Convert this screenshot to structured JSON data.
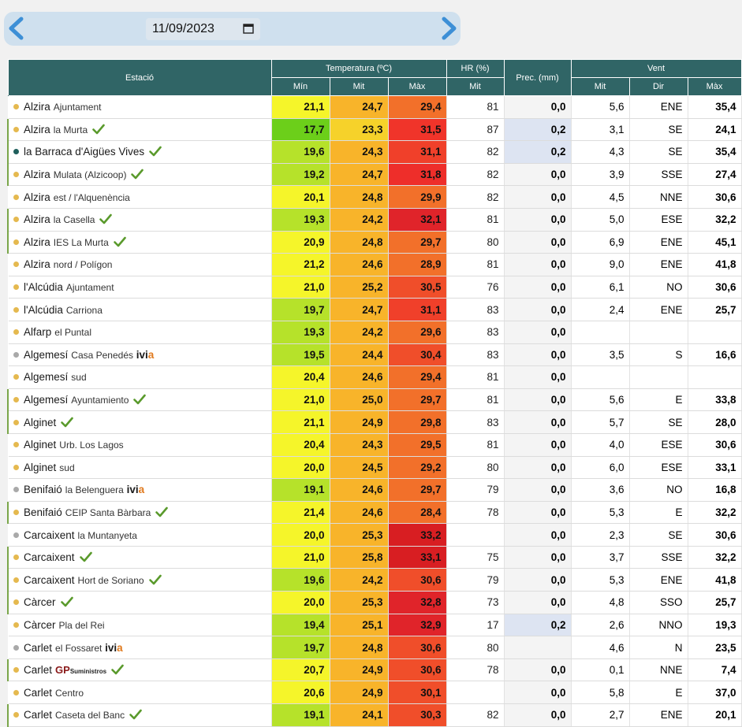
{
  "date": "11/09/2023",
  "colors": {
    "header": "#306566",
    "wet": "#dde4f2",
    "dot_default": "#e5b94f",
    "dot_gray": "#a9a9a9",
    "dot_teal": "#1f5f5c",
    "check": "#5a9a2c"
  },
  "headers": {
    "station": "Estació",
    "temp": "Temperatura (ºC)",
    "hr": "HR (%)",
    "prec": "Prec. (mm)",
    "wind": "Vent",
    "min": "Mín",
    "mit": "Mit",
    "max": "Màx",
    "hr_mit": "Mit",
    "wind_mit": "Mit",
    "wind_dir": "Dir",
    "wind_max": "Màx"
  },
  "rows": [
    {
      "name": "Alzira",
      "sub": "Ajuntament",
      "check": false,
      "dot": "y",
      "min": "21,1",
      "mit": "24,7",
      "max": "29,4",
      "hr": "81",
      "prec": "0,0",
      "wmit": "5,6",
      "wdir": "ENE",
      "wmax": "35,4",
      "cmin": "#f5f52a",
      "cmit": "#f8b42a",
      "cmax": "#f2702a"
    },
    {
      "name": "Alzira",
      "sub": "la Murta",
      "check": true,
      "dot": "y",
      "min": "17,7",
      "mit": "23,3",
      "max": "31,5",
      "hr": "87",
      "prec": "0,2",
      "wet": true,
      "wmit": "3,1",
      "wdir": "SE",
      "wmax": "24,1",
      "cmin": "#6ccf1a",
      "cmit": "#f6d22a",
      "cmax": "#f0342a"
    },
    {
      "name": "la Barraca d'Aigües Vives",
      "sub": "",
      "check": true,
      "dot": "t",
      "min": "19,6",
      "mit": "24,3",
      "max": "31,1",
      "hr": "82",
      "prec": "0,2",
      "wet": true,
      "wmit": "4,3",
      "wdir": "SE",
      "wmax": "35,4",
      "cmin": "#b6e22a",
      "cmit": "#f8b42a",
      "cmax": "#f0402a"
    },
    {
      "name": "Alzira",
      "sub": "Mulata (Alzicoop)",
      "check": true,
      "dot": "y",
      "min": "19,2",
      "mit": "24,7",
      "max": "31,8",
      "hr": "82",
      "prec": "0,0",
      "wmit": "3,9",
      "wdir": "SSE",
      "wmax": "27,4",
      "cmin": "#b6e22a",
      "cmit": "#f8b42a",
      "cmax": "#ee2e2a"
    },
    {
      "name": "Alzira",
      "sub": "est / l'Alquenència",
      "check": false,
      "dot": "y",
      "min": "20,1",
      "mit": "24,8",
      "max": "29,9",
      "hr": "82",
      "prec": "0,0",
      "wmit": "4,5",
      "wdir": "NNE",
      "wmax": "30,6",
      "cmin": "#f5f52a",
      "cmit": "#f8b42a",
      "cmax": "#f2702a"
    },
    {
      "name": "Alzira",
      "sub": "la Casella",
      "check": true,
      "dot": "y",
      "min": "19,3",
      "mit": "24,2",
      "max": "32,1",
      "hr": "81",
      "prec": "0,0",
      "wmit": "5,0",
      "wdir": "ESE",
      "wmax": "32,2",
      "cmin": "#b6e22a",
      "cmit": "#f8b42a",
      "cmax": "#e0242a"
    },
    {
      "name": "Alzira",
      "sub": "IES La Murta",
      "check": true,
      "dot": "y",
      "min": "20,9",
      "mit": "24,8",
      "max": "29,7",
      "hr": "80",
      "prec": "0,0",
      "wmit": "6,9",
      "wdir": "ENE",
      "wmax": "45,1",
      "cmin": "#f5f52a",
      "cmit": "#f8b42a",
      "cmax": "#f2702a"
    },
    {
      "name": "Alzira",
      "sub": "nord / Polígon",
      "check": false,
      "dot": "y",
      "min": "21,2",
      "mit": "24,6",
      "max": "28,9",
      "hr": "81",
      "prec": "0,0",
      "wmit": "9,0",
      "wdir": "ENE",
      "wmax": "41,8",
      "cmin": "#f5f52a",
      "cmit": "#f8b42a",
      "cmax": "#f2702a"
    },
    {
      "name": "l'Alcúdia",
      "sub": "Ajuntament",
      "check": false,
      "dot": "y",
      "min": "21,0",
      "mit": "25,2",
      "max": "30,5",
      "hr": "76",
      "prec": "0,0",
      "wmit": "6,1",
      "wdir": "NO",
      "wmax": "30,6",
      "cmin": "#f5f52a",
      "cmit": "#f8b42a",
      "cmax": "#f04e2a"
    },
    {
      "name": "l'Alcúdia",
      "sub": "Carriona",
      "check": false,
      "dot": "y",
      "min": "19,7",
      "mit": "24,7",
      "max": "31,1",
      "hr": "83",
      "prec": "0,0",
      "wmit": "2,4",
      "wdir": "ENE",
      "wmax": "25,7",
      "cmin": "#b6e22a",
      "cmit": "#f8b42a",
      "cmax": "#f0402a"
    },
    {
      "name": "Alfarp",
      "sub": "el Puntal",
      "check": false,
      "dot": "y",
      "min": "19,3",
      "mit": "24,2",
      "max": "29,6",
      "hr": "83",
      "prec": "0,0",
      "wmit": "",
      "wdir": "",
      "wmax": "",
      "cmin": "#b6e22a",
      "cmit": "#f8b42a",
      "cmax": "#f2702a"
    },
    {
      "name": "Algemesí",
      "sub": "Casa Penedés",
      "ivia": true,
      "check": false,
      "dot": "g",
      "min": "19,5",
      "mit": "24,4",
      "max": "30,4",
      "hr": "83",
      "prec": "0,0",
      "wmit": "3,5",
      "wdir": "S",
      "wmax": "16,6",
      "cmin": "#b6e22a",
      "cmit": "#f8b42a",
      "cmax": "#f04e2a"
    },
    {
      "name": "Algemesí",
      "sub": "sud",
      "check": false,
      "dot": "y",
      "min": "20,4",
      "mit": "24,6",
      "max": "29,4",
      "hr": "81",
      "prec": "0,0",
      "wmit": "",
      "wdir": "",
      "wmax": "",
      "cmin": "#f5f52a",
      "cmit": "#f8b42a",
      "cmax": "#f2702a"
    },
    {
      "name": "Algemesí",
      "sub": "Ayuntamiento",
      "check": true,
      "dot": "y",
      "min": "21,0",
      "mit": "25,0",
      "max": "29,7",
      "hr": "81",
      "prec": "0,0",
      "wmit": "5,6",
      "wdir": "E",
      "wmax": "33,8",
      "cmin": "#f5f52a",
      "cmit": "#f8b42a",
      "cmax": "#f2702a"
    },
    {
      "name": "Alginet",
      "sub": "",
      "check": true,
      "dot": "y",
      "min": "21,1",
      "mit": "24,9",
      "max": "29,8",
      "hr": "83",
      "prec": "0,0",
      "wmit": "5,7",
      "wdir": "SE",
      "wmax": "28,0",
      "cmin": "#f5f52a",
      "cmit": "#f8b42a",
      "cmax": "#f2702a"
    },
    {
      "name": "Alginet",
      "sub": "Urb. Los Lagos",
      "check": false,
      "dot": "y",
      "min": "20,4",
      "mit": "24,3",
      "max": "29,5",
      "hr": "81",
      "prec": "0,0",
      "wmit": "4,0",
      "wdir": "ESE",
      "wmax": "30,6",
      "cmin": "#f5f52a",
      "cmit": "#f8b42a",
      "cmax": "#f2702a"
    },
    {
      "name": "Alginet",
      "sub": "sud",
      "check": false,
      "dot": "y",
      "min": "20,0",
      "mit": "24,5",
      "max": "29,2",
      "hr": "80",
      "prec": "0,0",
      "wmit": "6,0",
      "wdir": "ESE",
      "wmax": "33,1",
      "cmin": "#f5f52a",
      "cmit": "#f8b42a",
      "cmax": "#f2702a"
    },
    {
      "name": "Benifaió",
      "sub": "la Belenguera",
      "ivia": true,
      "check": false,
      "dot": "g",
      "min": "19,1",
      "mit": "24,6",
      "max": "29,7",
      "hr": "79",
      "prec": "0,0",
      "wmit": "3,6",
      "wdir": "NO",
      "wmax": "16,8",
      "cmin": "#b6e22a",
      "cmit": "#f8b42a",
      "cmax": "#f2702a"
    },
    {
      "name": "Benifaió",
      "sub": "CEIP Santa Bàrbara",
      "check": true,
      "dot": "y",
      "min": "21,4",
      "mit": "24,6",
      "max": "28,4",
      "hr": "78",
      "prec": "0,0",
      "wmit": "5,3",
      "wdir": "E",
      "wmax": "32,2",
      "cmin": "#f5f52a",
      "cmit": "#f8b42a",
      "cmax": "#f2702a"
    },
    {
      "name": "Carcaixent",
      "sub": "la Muntanyeta",
      "check": false,
      "dot": "g",
      "min": "20,0",
      "mit": "25,3",
      "max": "33,2",
      "hr": "",
      "prec": "0,0",
      "wmit": "2,3",
      "wdir": "SE",
      "wmax": "30,6",
      "cmin": "#f5f52a",
      "cmit": "#f8b42a",
      "cmax": "#d81e22"
    },
    {
      "name": "Carcaixent",
      "sub": "",
      "check": true,
      "dot": "y",
      "min": "21,0",
      "mit": "25,8",
      "max": "33,1",
      "hr": "75",
      "prec": "0,0",
      "wmit": "3,7",
      "wdir": "SSE",
      "wmax": "32,2",
      "cmin": "#f5f52a",
      "cmit": "#f8b42a",
      "cmax": "#d81e22"
    },
    {
      "name": "Carcaixent",
      "sub": "Hort de Soriano",
      "check": true,
      "dot": "y",
      "min": "19,6",
      "mit": "24,2",
      "max": "30,6",
      "hr": "79",
      "prec": "0,0",
      "wmit": "5,3",
      "wdir": "ENE",
      "wmax": "41,8",
      "cmin": "#b6e22a",
      "cmit": "#f8b42a",
      "cmax": "#f04e2a"
    },
    {
      "name": "Càrcer",
      "sub": "",
      "check": true,
      "dot": "y",
      "min": "20,0",
      "mit": "25,3",
      "max": "32,8",
      "hr": "73",
      "prec": "0,0",
      "wmit": "4,8",
      "wdir": "SSO",
      "wmax": "25,7",
      "cmin": "#f5f52a",
      "cmit": "#f8b42a",
      "cmax": "#e0242a"
    },
    {
      "name": "Càrcer",
      "sub": "Pla del Rei",
      "check": false,
      "dot": "y",
      "min": "19,4",
      "mit": "25,1",
      "max": "32,9",
      "hr": "17",
      "prec": "0,2",
      "wet": true,
      "wmit": "2,6",
      "wdir": "NNO",
      "wmax": "19,3",
      "cmin": "#b6e22a",
      "cmit": "#f8b42a",
      "cmax": "#e0242a"
    },
    {
      "name": "Carlet",
      "sub": "el Fossaret",
      "ivia": true,
      "check": false,
      "dot": "g",
      "min": "19,7",
      "mit": "24,8",
      "max": "30,6",
      "hr": "80",
      "prec": "",
      "wmit": "4,6",
      "wdir": "N",
      "wmax": "23,5",
      "cmin": "#b6e22a",
      "cmit": "#f8b42a",
      "cmax": "#f04e2a"
    },
    {
      "name": "Carlet",
      "sub": "",
      "gp": true,
      "check": true,
      "dot": "y",
      "min": "20,7",
      "mit": "24,9",
      "max": "30,6",
      "hr": "78",
      "prec": "0,0",
      "wmit": "0,1",
      "wdir": "NNE",
      "wmax": "7,4",
      "cmin": "#f5f52a",
      "cmit": "#f8b42a",
      "cmax": "#f04e2a"
    },
    {
      "name": "Carlet",
      "sub": "Centro",
      "check": false,
      "dot": "y",
      "min": "20,6",
      "mit": "24,9",
      "max": "30,1",
      "hr": "",
      "prec": "0,0",
      "wmit": "5,8",
      "wdir": "E",
      "wmax": "37,0",
      "cmin": "#f5f52a",
      "cmit": "#f8b42a",
      "cmax": "#f04e2a"
    },
    {
      "name": "Carlet",
      "sub": "Caseta del Banc",
      "check": true,
      "dot": "y",
      "min": "19,1",
      "mit": "24,1",
      "max": "30,3",
      "hr": "82",
      "prec": "0,0",
      "wmit": "2,7",
      "wdir": "ENE",
      "wmax": "20,1",
      "cmin": "#b6e22a",
      "cmit": "#f8b42a",
      "cmax": "#f04e2a"
    }
  ],
  "gp_brand": {
    "gp": "GP",
    "suffix": "Suministros"
  },
  "ivia": {
    "a": "ivi",
    "b": "a"
  }
}
